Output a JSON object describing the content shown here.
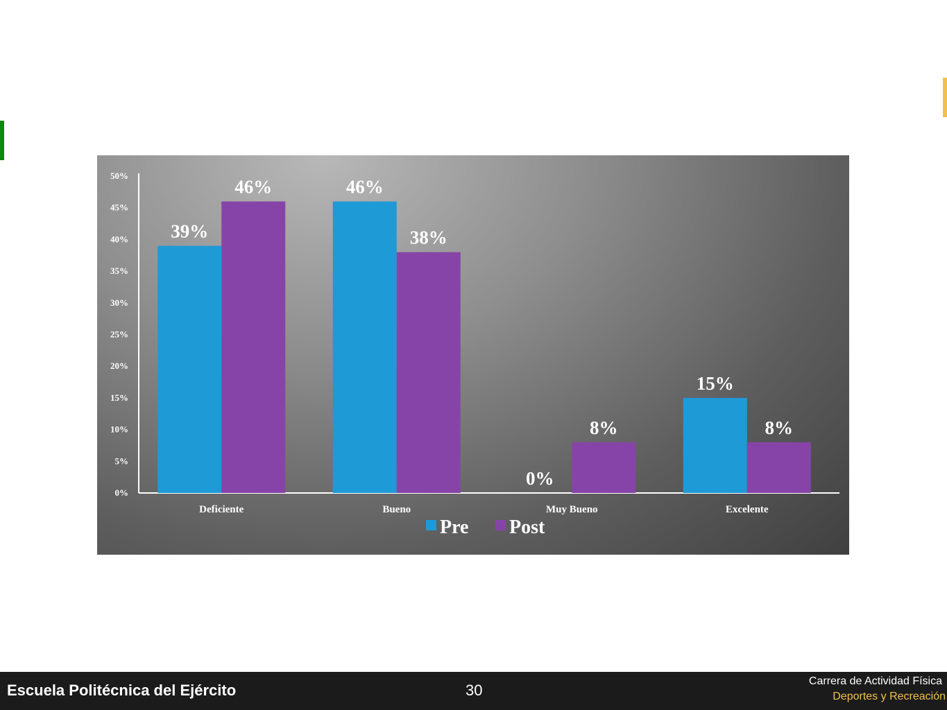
{
  "chart_data": {
    "type": "bar",
    "categories": [
      "Deficiente",
      "Bueno",
      "Muy Bueno",
      "Excelente"
    ],
    "series": [
      {
        "name": "Pre",
        "values": [
          39,
          46,
          0,
          15
        ],
        "labels": [
          "39%",
          "46%",
          "0%",
          "15%"
        ],
        "color": "#1e9ad6"
      },
      {
        "name": "Post",
        "values": [
          46,
          38,
          8,
          8
        ],
        "labels": [
          "46%",
          "38%",
          "8%",
          "8%"
        ],
        "color": "#8744a8"
      }
    ],
    "ylim": [
      0,
      50
    ],
    "yticks": [
      "0%",
      "5%",
      "10%",
      "15%",
      "20%",
      "25%",
      "30%",
      "35%",
      "40%",
      "45%",
      "50%"
    ],
    "legend": "bottom-center",
    "grid": false
  },
  "footer": {
    "school": "Escuela Politécnica del Ejército",
    "page_number": "30",
    "career_line1": "Carrera de Actividad Física",
    "career_line2": "Deportes y Recreación"
  }
}
